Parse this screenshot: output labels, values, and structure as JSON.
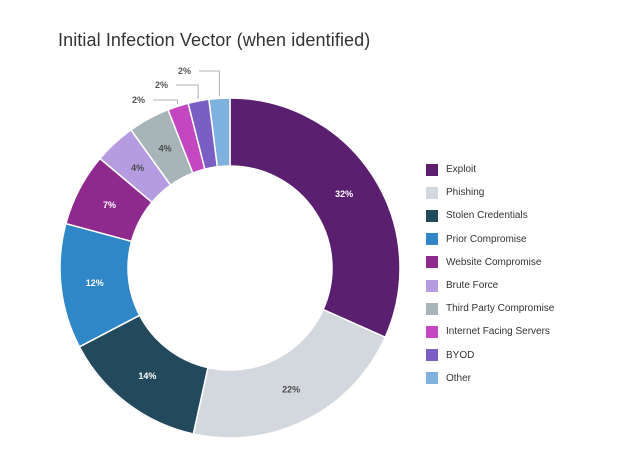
{
  "chart_data": {
    "type": "pie",
    "title": "Initial Infection Vector (when identified)",
    "categories": [
      "Exploit",
      "Phishing",
      "Stolen Credentials",
      "Prior Compromise",
      "Website Compromise",
      "Brute Force",
      "Third Party Compromise",
      "Internet Facing Servers",
      "BYOD",
      "Other"
    ],
    "values": [
      32,
      22,
      14,
      12,
      7,
      4,
      4,
      2,
      2,
      2
    ],
    "labels": [
      "32%",
      "22%",
      "14%",
      "12%",
      "7%",
      "4%",
      "4%",
      "2%",
      "2%",
      "2%"
    ],
    "colors": [
      "#5a1f6e",
      "#d2d8dd",
      "#23495d",
      "#2f87c8",
      "#8e2a8d",
      "#b59ce0",
      "#a7b5b8",
      "#c447c2",
      "#7a5ec4",
      "#7eb1de"
    ],
    "inner_radius_ratio": 0.6,
    "legend": "right"
  }
}
